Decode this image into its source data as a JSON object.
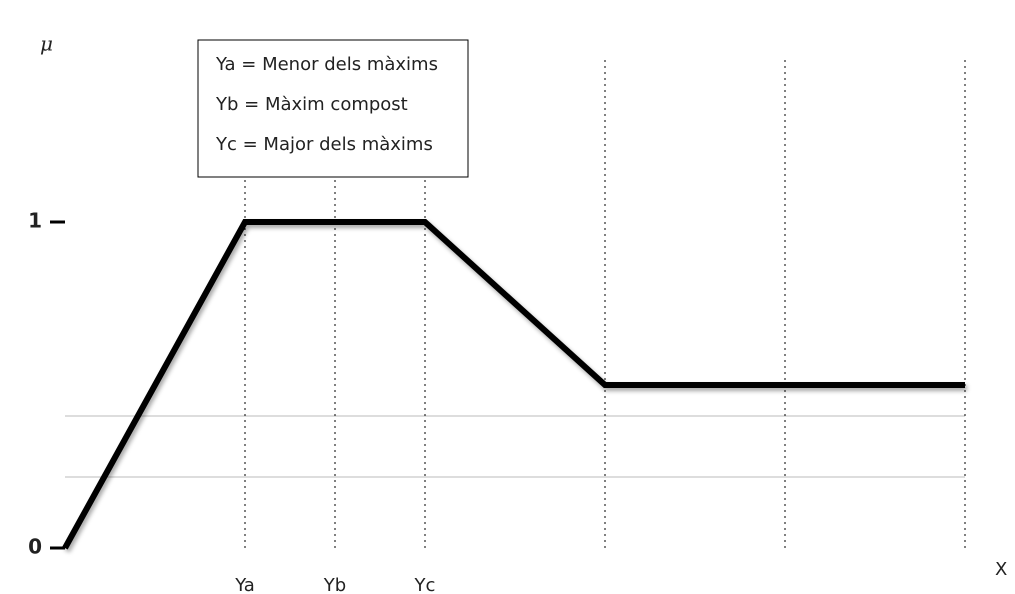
{
  "chart_data": {
    "type": "line",
    "y_label": "μ",
    "x_label": "X",
    "annotations": [
      "Ya = Menor dels màxims",
      "Yb = Màxim compost",
      "Yc = Major dels màxims"
    ],
    "categories": [
      null,
      null,
      "Ya",
      "Yb",
      "Yc",
      null,
      null,
      null,
      null,
      null,
      null
    ],
    "values": [
      0,
      0.5,
      1,
      1,
      1,
      0.75,
      0.5,
      0.5,
      0.5,
      0.5,
      0.5
    ],
    "color": "#000000",
    "ylim": [
      0,
      1.5
    ],
    "yticks": [
      0,
      1
    ]
  }
}
